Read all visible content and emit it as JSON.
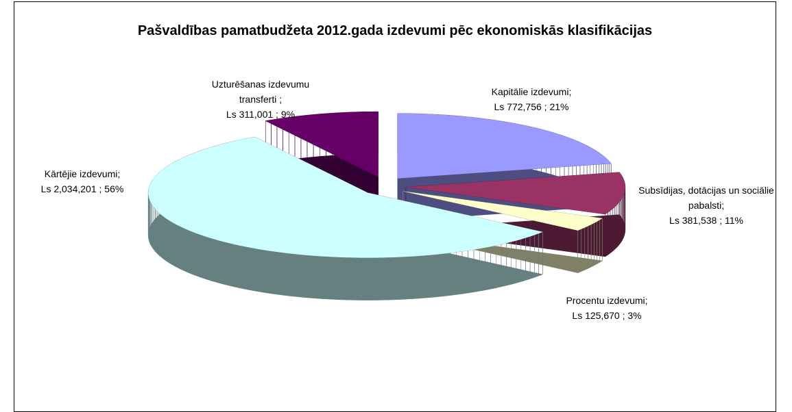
{
  "chart_data": {
    "type": "pie",
    "title": "Pašvaldības pamatbudžeta 2012.gada izdevumi pēc ekonomiskās klasifikācijas",
    "categories": [
      "Kapitālie izdevumi;",
      "Subsīdijas, dotācijas un sociālie pabalsti;",
      "Procentu izdevumi;",
      "Kārtējie izdevumi;",
      "Uzturēšanas izdevumu transferti ;"
    ],
    "values": [
      772756,
      381538,
      125670,
      2034201,
      311001
    ],
    "value_labels": [
      "Ls 772,756 ; 21%",
      "Ls 381,538 ; 11%",
      "Ls 125,670 ; 3%",
      "Ls 2,034,201 ; 56%",
      "Ls 311,001 ; 9%"
    ],
    "colors": [
      "#9999ff",
      "#993366",
      "#ffffcc",
      "#ccffff",
      "#660066"
    ]
  }
}
